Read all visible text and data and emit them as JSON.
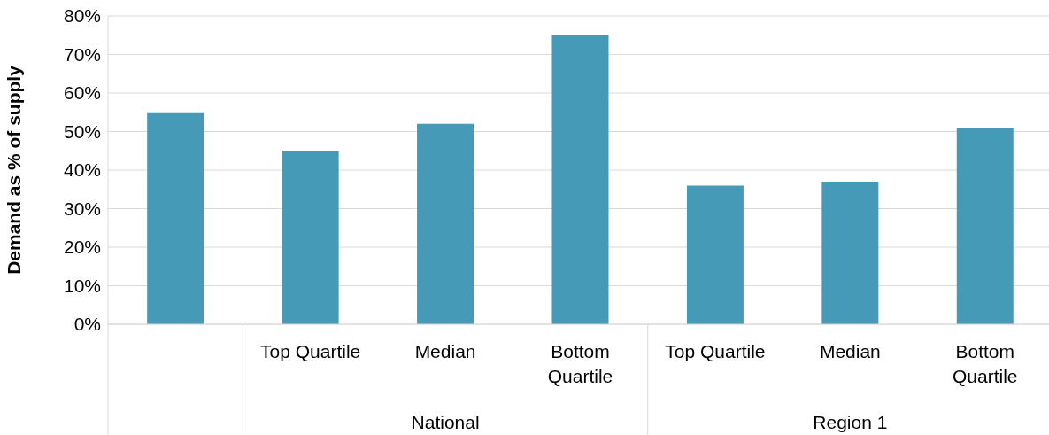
{
  "chart_data": {
    "type": "bar",
    "ylabel": "Demand as % of supply",
    "categories": [
      null,
      "Top Quartile",
      "Median",
      "Bottom Quartile",
      "Top Quartile",
      "Median",
      "Bottom Quartile"
    ],
    "values": [
      55,
      45,
      52,
      75,
      36,
      37,
      51
    ],
    "color": "#459ab8",
    "ylim": [
      0,
      80
    ],
    "yticks": [
      {
        "value": 0,
        "label": "0%"
      },
      {
        "value": 10,
        "label": "10%"
      },
      {
        "value": 20,
        "label": "20%"
      },
      {
        "value": 30,
        "label": "30%"
      },
      {
        "value": 40,
        "label": "40%"
      },
      {
        "value": 50,
        "label": "50%"
      },
      {
        "value": 60,
        "label": "60%"
      },
      {
        "value": 70,
        "label": "70%"
      },
      {
        "value": 80,
        "label": "80%"
      }
    ],
    "grid": "y",
    "annotations": [
      "National",
      "Region 1"
    ]
  }
}
